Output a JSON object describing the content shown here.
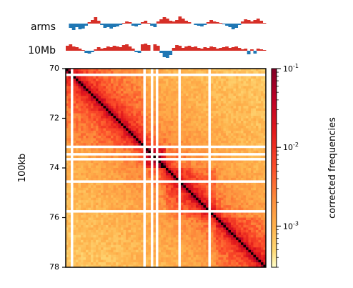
{
  "chart_data": [
    {
      "type": "area",
      "name": "arms-track",
      "label": "arms",
      "x_range": [
        70,
        78
      ],
      "positive_color": "#d62f27",
      "negative_color": "#1f77b4",
      "values": [
        0.0,
        -0.6,
        -0.9,
        -0.5,
        -0.8,
        -0.7,
        -0.3,
        0.2,
        0.5,
        0.9,
        0.4,
        -0.2,
        -0.6,
        -0.5,
        -0.7,
        -0.5,
        -0.4,
        -0.2,
        0.1,
        0.3,
        0.2,
        -0.3,
        -0.4,
        -0.2,
        0.2,
        0.4,
        0.1,
        -0.3,
        -0.5,
        0.3,
        0.6,
        0.9,
        0.7,
        0.4,
        0.3,
        0.5,
        1.0,
        0.7,
        0.4,
        0.2,
        0.0,
        -0.2,
        -0.3,
        -0.4,
        -0.2,
        0.2,
        0.5,
        0.3,
        0.2,
        0.1,
        -0.1,
        -0.3,
        -0.5,
        -0.8,
        -0.6,
        -0.2,
        0.3,
        0.6,
        0.5,
        0.3,
        0.5,
        0.7,
        0.4,
        0.1
      ]
    },
    {
      "type": "area",
      "name": "10mb-track",
      "label": "10Mb",
      "x_range": [
        70,
        78
      ],
      "positive_color": "#d62f27",
      "negative_color": "#1f77b4",
      "values": [
        0.7,
        0.9,
        0.6,
        0.5,
        0.3,
        0.1,
        -0.3,
        -0.4,
        -0.2,
        0.2,
        0.5,
        0.3,
        0.4,
        0.6,
        0.5,
        0.7,
        0.6,
        0.5,
        0.8,
        0.9,
        0.6,
        0.3,
        -0.2,
        -0.3,
        0.9,
        1.0,
        0.8,
        0.0,
        0.9,
        0.7,
        -0.3,
        -0.9,
        -1.0,
        -0.6,
        0.4,
        0.8,
        0.7,
        0.4,
        0.6,
        0.7,
        0.5,
        0.6,
        0.4,
        0.3,
        0.5,
        0.4,
        0.6,
        0.5,
        0.3,
        0.4,
        0.5,
        0.6,
        0.4,
        0.5,
        0.6,
        0.4,
        0.2,
        0.3,
        -0.5,
        0.2,
        -0.4,
        0.3,
        0.2,
        0.1
      ]
    },
    {
      "type": "heatmap",
      "name": "contact-matrix",
      "ylabel": "100kb",
      "x_range": [
        70,
        78
      ],
      "ylim": [
        70,
        78
      ],
      "yticks": [
        "70",
        "72",
        "74",
        "76",
        "78"
      ],
      "ytick_values": [
        70,
        72,
        74,
        76,
        78
      ],
      "bins": 80,
      "masked_bins": [
        2,
        31,
        34,
        36,
        45,
        57
      ],
      "domains": [
        [
          0,
          32
        ],
        [
          32,
          40
        ],
        [
          40,
          60
        ],
        [
          60,
          80
        ]
      ],
      "scale": "log",
      "vmin": 0.0003,
      "vmax": 0.1,
      "colormap": "YlOrRd-to-black",
      "colorbar": {
        "label": "corrected frequencies",
        "tick_labels": [
          "10",
          "10",
          "10"
        ],
        "tick_exponents": [
          "-1",
          "-2",
          "-3"
        ],
        "tick_values": [
          0.1,
          0.01,
          0.001
        ]
      }
    }
  ]
}
